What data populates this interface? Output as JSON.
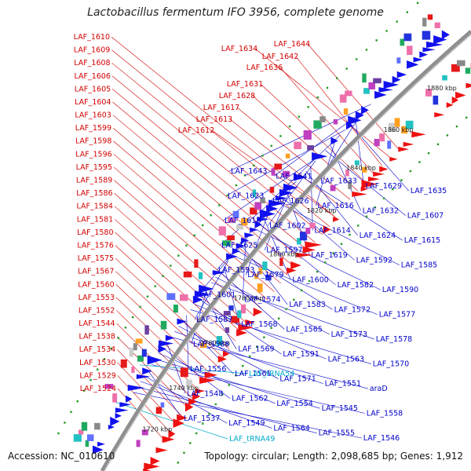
{
  "title": "Lactobacillus fermentum IFO 3956, complete genome",
  "footer": {
    "accession": "Accession: NC_010610",
    "summary": "Topology: circular; Length: 2,098,685 bp; Genes: 1,912"
  },
  "colors": {
    "left_labels": "#d40000",
    "right_labels": "#0000cc",
    "rna_labels": "#00aacc",
    "backbone": "#888888",
    "forward_features": "#ee1111",
    "reverse_features": "#1111ee",
    "tick_dots": "#229922"
  },
  "scale_labels": [
    "1880 kbp",
    "1860 kbp",
    "1840 kbp",
    "1820 kbp",
    "1800 kbp",
    "1780 kbp",
    "1760 kbp",
    "1740 kbp",
    "1720 kbp"
  ],
  "left_labels": [
    "LAF_1610",
    "LAF_1609",
    "LAF_1608",
    "LAF_1606",
    "LAF_1605",
    "LAF_1604",
    "LAF_1603",
    "LAF_1599",
    "LAF_1598",
    "LAF_1596",
    "LAF_1595",
    "LAF_1589",
    "LAF_1586",
    "LAF_1584",
    "LAF_1581",
    "LAF_1580",
    "LAF_1576",
    "LAF_1575",
    "LAF_1567",
    "LAF_1560",
    "LAF_1553",
    "LAF_1552",
    "LAF_1544",
    "LAF_1538",
    "LAF_1534",
    "LAF_1530",
    "LAF_1529",
    "LAF_1524"
  ],
  "top_labels": [
    "LAF_1644",
    "LAF_1634",
    "LAF_1642",
    "LAF_1636",
    "LAF_1631",
    "LAF_1628",
    "LAF_1617",
    "LAF_1613",
    "LAF_1612"
  ],
  "right_labels": [
    "LAF_1643",
    "LAF_1641",
    "LAF_1633",
    "LAF_1629",
    "LAF_1635",
    "LAF_1623",
    "LAF_1626",
    "LAF_1616",
    "LAF_1632",
    "LAF_1607",
    "LAF_1618",
    "LAF_1602",
    "LAF_1614",
    "LAF_1624",
    "LAF_1615",
    "LAF_1625",
    "LAF_1597",
    "LAF_1619",
    "LAF_1592",
    "LAF_1585",
    "LAF_1593",
    "LAF_1579",
    "LAF_1600",
    "LAF_1582",
    "LAF_1590",
    "LAF_1601",
    "LAF_1574",
    "LAF_1583",
    "LAF_1572",
    "LAF_1577",
    "LAF_1587",
    "LAF_1568",
    "LAF_1565",
    "LAF_1573",
    "LAF_1578",
    "LAF_1588",
    "LAF_1569",
    "LAF_1591",
    "LAF_1563",
    "LAF_1570",
    "LAF_1556",
    "LAF_1561",
    "LAF_1571",
    "LAF_1551",
    "araD",
    "LAF_1548",
    "LAF_1562",
    "LAF_1554",
    "LAF_1545",
    "LAF_1558",
    "LAF_1537",
    "LAF_1549",
    "LAF_1564",
    "LAF_1555",
    "LAF_1546"
  ],
  "rna_labels": [
    "LAF_tRNA54",
    "LAF_tRNA49"
  ]
}
